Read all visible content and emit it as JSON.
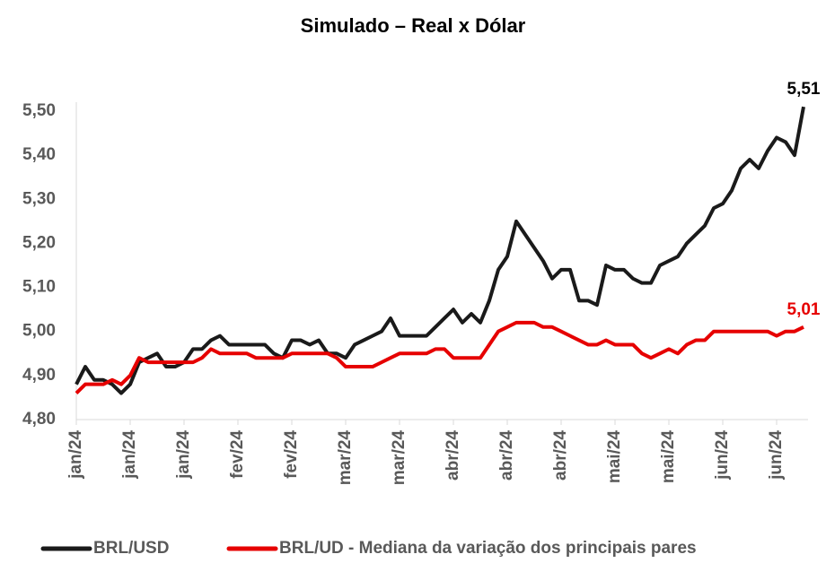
{
  "chart_data": {
    "type": "line",
    "title": "Simulado – Real x Dólar",
    "categories": [
      "jan/24",
      null,
      null,
      null,
      null,
      null,
      "jan/24",
      null,
      null,
      null,
      null,
      null,
      "jan/24",
      null,
      null,
      null,
      null,
      null,
      "fev/24",
      null,
      null,
      null,
      null,
      null,
      "fev/24",
      null,
      null,
      null,
      null,
      null,
      "mar/24",
      null,
      null,
      null,
      null,
      null,
      "mar/24",
      null,
      null,
      null,
      null,
      null,
      "abr/24",
      null,
      null,
      null,
      null,
      null,
      "abr/24",
      null,
      null,
      null,
      null,
      null,
      "abr/24",
      null,
      null,
      null,
      null,
      null,
      "mai/24",
      null,
      null,
      null,
      null,
      null,
      "mai/24",
      null,
      null,
      null,
      null,
      null,
      "jun/24",
      null,
      null,
      null,
      null,
      null,
      "jun/24",
      null,
      null,
      null
    ],
    "series": [
      {
        "name": "BRL/USD",
        "color": "#1a1a1a",
        "values": [
          4.88,
          4.92,
          4.89,
          4.89,
          4.88,
          4.86,
          4.88,
          4.93,
          4.94,
          4.95,
          4.92,
          4.92,
          4.93,
          4.96,
          4.96,
          4.98,
          4.99,
          4.97,
          4.97,
          4.97,
          4.97,
          4.97,
          4.95,
          4.94,
          4.98,
          4.98,
          4.97,
          4.98,
          4.95,
          4.95,
          4.94,
          4.97,
          4.98,
          4.99,
          5.0,
          5.03,
          4.99,
          4.99,
          4.99,
          4.99,
          5.01,
          5.03,
          5.05,
          5.02,
          5.04,
          5.02,
          5.07,
          5.14,
          5.17,
          5.25,
          5.22,
          5.19,
          5.16,
          5.12,
          5.14,
          5.14,
          5.07,
          5.07,
          5.06,
          5.15,
          5.14,
          5.14,
          5.12,
          5.11,
          5.11,
          5.15,
          5.16,
          5.17,
          5.2,
          5.22,
          5.24,
          5.28,
          5.29,
          5.32,
          5.37,
          5.39,
          5.37,
          5.41,
          5.44,
          5.43,
          5.4,
          5.51
        ],
        "value_labels": [
          null,
          null,
          null,
          null,
          null,
          null,
          null,
          null,
          null,
          null,
          null,
          null,
          null,
          null,
          null,
          null,
          null,
          null,
          null,
          null,
          null,
          null,
          null,
          null,
          null,
          null,
          null,
          null,
          null,
          null,
          null,
          null,
          null,
          null,
          null,
          null,
          null,
          null,
          null,
          null,
          null,
          null,
          null,
          null,
          null,
          null,
          null,
          null,
          null,
          null,
          null,
          null,
          null,
          null,
          null,
          null,
          null,
          null,
          null,
          null,
          null,
          null,
          null,
          null,
          null,
          null,
          null,
          null,
          null,
          null,
          null,
          null,
          null,
          null,
          null,
          null,
          null,
          null,
          null,
          null,
          null,
          "5,51"
        ]
      },
      {
        "name": "BRL/UD - Mediana da variação dos principais pares",
        "color": "#e60000",
        "values": [
          4.86,
          4.88,
          4.88,
          4.88,
          4.89,
          4.88,
          4.9,
          4.94,
          4.93,
          4.93,
          4.93,
          4.93,
          4.93,
          4.93,
          4.94,
          4.96,
          4.95,
          4.95,
          4.95,
          4.95,
          4.94,
          4.94,
          4.94,
          4.94,
          4.95,
          4.95,
          4.95,
          4.95,
          4.95,
          4.94,
          4.92,
          4.92,
          4.92,
          4.92,
          4.93,
          4.94,
          4.95,
          4.95,
          4.95,
          4.95,
          4.96,
          4.96,
          4.94,
          4.94,
          4.94,
          4.94,
          4.97,
          5.0,
          5.01,
          5.02,
          5.02,
          5.02,
          5.01,
          5.01,
          5.0,
          4.99,
          4.98,
          4.97,
          4.97,
          4.98,
          4.97,
          4.97,
          4.97,
          4.95,
          4.94,
          4.95,
          4.96,
          4.95,
          4.97,
          4.98,
          4.98,
          5.0,
          5.0,
          5.0,
          5.0,
          5.0,
          5.0,
          5.0,
          4.99,
          5.0,
          5.0,
          5.01
        ],
        "value_labels": [
          null,
          null,
          null,
          null,
          null,
          null,
          null,
          null,
          null,
          null,
          null,
          null,
          null,
          null,
          null,
          null,
          null,
          null,
          null,
          null,
          null,
          null,
          null,
          null,
          null,
          null,
          null,
          null,
          null,
          null,
          null,
          null,
          null,
          null,
          null,
          null,
          null,
          null,
          null,
          null,
          null,
          null,
          null,
          null,
          null,
          null,
          null,
          null,
          null,
          null,
          null,
          null,
          null,
          null,
          null,
          null,
          null,
          null,
          null,
          null,
          null,
          null,
          null,
          null,
          null,
          null,
          null,
          null,
          null,
          null,
          null,
          null,
          null,
          null,
          null,
          null,
          null,
          null,
          null,
          null,
          null,
          "5,01"
        ]
      }
    ],
    "ylim": [
      4.8,
      5.5
    ],
    "yticks": [
      {
        "value": 4.8,
        "label": "4,80"
      },
      {
        "value": 4.9,
        "label": "4,90"
      },
      {
        "value": 5.0,
        "label": "5,00"
      },
      {
        "value": 5.1,
        "label": "5,10"
      },
      {
        "value": 5.2,
        "label": "5,20"
      },
      {
        "value": 5.3,
        "label": "5,30"
      },
      {
        "value": 5.4,
        "label": "5,40"
      },
      {
        "value": 5.5,
        "label": "5,50"
      }
    ],
    "grid": false,
    "legend": "bottom"
  }
}
